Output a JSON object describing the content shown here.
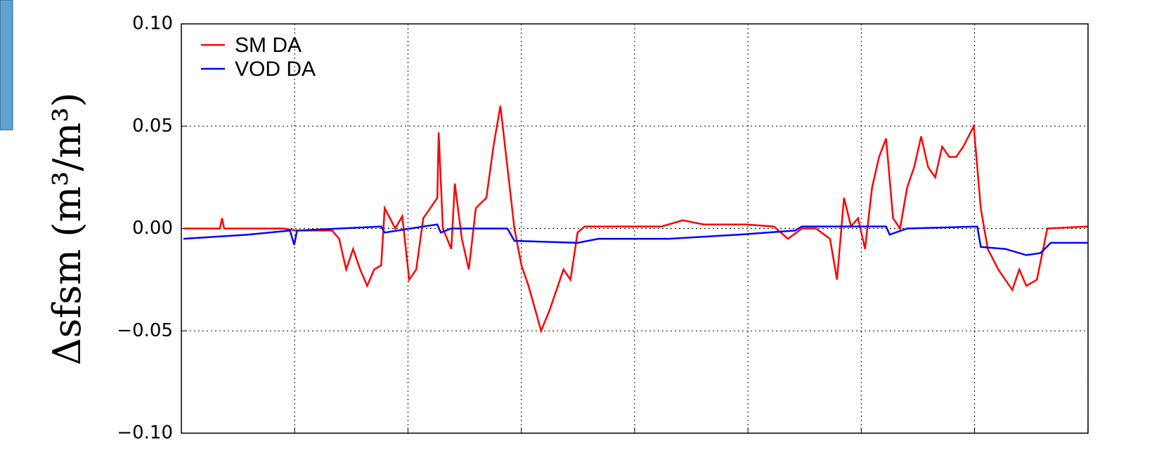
{
  "chart_data": {
    "type": "line",
    "ylabel": "Δsfsm (m³/m³)",
    "xlim": [
      0,
      1293
    ],
    "xticks": [
      0,
      161.6,
      323.2,
      484.8,
      646.4,
      808,
      969.6,
      1131.2,
      1292.8
    ],
    "ylim": [
      -0.1,
      0.1
    ],
    "yticks": [
      {
        "value": -0.1,
        "label": "−0.10"
      },
      {
        "value": -0.05,
        "label": "−0.05"
      },
      {
        "value": 0,
        "label": "0.00"
      },
      {
        "value": 0.05,
        "label": "0.05"
      },
      {
        "value": 0.1,
        "label": "0.10"
      }
    ],
    "grid": true,
    "legend": "upper left",
    "series": [
      {
        "name": "SM DA",
        "color": "#ff0000",
        "x": [
          3,
          55,
          58,
          61,
          145,
          165,
          205,
          215,
          225,
          235,
          245,
          255,
          265,
          275,
          285,
          290,
          305,
          315,
          325,
          335,
          345,
          355,
          365,
          367,
          373,
          385,
          390,
          400,
          410,
          420,
          435,
          445,
          455,
          465,
          475,
          485,
          495,
          505,
          513,
          525,
          535,
          545,
          555,
          565,
          575,
          645,
          685,
          715,
          745,
          805,
          845,
          865,
          885,
          905,
          925,
          935,
          945,
          955,
          965,
          975,
          985,
          995,
          1005,
          1015,
          1025,
          1035,
          1045,
          1055,
          1065,
          1075,
          1085,
          1095,
          1105,
          1115,
          1130,
          1140,
          1150,
          1165,
          1185,
          1195,
          1205,
          1220,
          1235,
          1293
        ],
        "values": [
          0,
          0,
          0.005,
          0,
          0,
          -0.001,
          -0.001,
          -0.001,
          -0.005,
          -0.02,
          -0.01,
          -0.02,
          -0.028,
          -0.02,
          -0.018,
          0.01,
          0,
          0.006,
          -0.025,
          -0.02,
          0.005,
          0.01,
          0.015,
          0.047,
          0,
          -0.01,
          0.022,
          -0.005,
          -0.02,
          0.01,
          0.015,
          0.04,
          0.06,
          0.03,
          0,
          -0.018,
          -0.028,
          -0.04,
          -0.05,
          -0.04,
          -0.03,
          -0.02,
          -0.025,
          -0.002,
          0.001,
          0.001,
          0.001,
          0.004,
          0.002,
          0.002,
          0.001,
          -0.005,
          0,
          0,
          -0.005,
          -0.025,
          0.015,
          0.001,
          0.005,
          -0.01,
          0.02,
          0.035,
          0.044,
          0.005,
          0,
          0.02,
          0.03,
          0.045,
          0.03,
          0.025,
          0.04,
          0.035,
          0.035,
          0.04,
          0.05,
          0.01,
          -0.01,
          -0.02,
          -0.03,
          -0.02,
          -0.028,
          -0.025,
          0,
          0.001
        ]
      },
      {
        "name": "VOD DA",
        "color": "#0000ff",
        "x": [
          3,
          95,
          155,
          161,
          165,
          225,
          285,
          290,
          345,
          365,
          370,
          385,
          465,
          475,
          565,
          595,
          695,
          795,
          875,
          885,
          1005,
          1010,
          1035,
          1135,
          1140,
          1175,
          1205,
          1225,
          1240,
          1293
        ],
        "values": [
          -0.005,
          -0.003,
          -0.001,
          -0.008,
          -0.001,
          0,
          0.001,
          -0.002,
          0.001,
          0.002,
          -0.002,
          0,
          0,
          -0.006,
          -0.007,
          -0.005,
          -0.005,
          -0.003,
          -0.001,
          0.001,
          0.001,
          -0.003,
          0,
          0.001,
          -0.009,
          -0.01,
          -0.013,
          -0.012,
          -0.007,
          -0.007
        ]
      }
    ]
  }
}
